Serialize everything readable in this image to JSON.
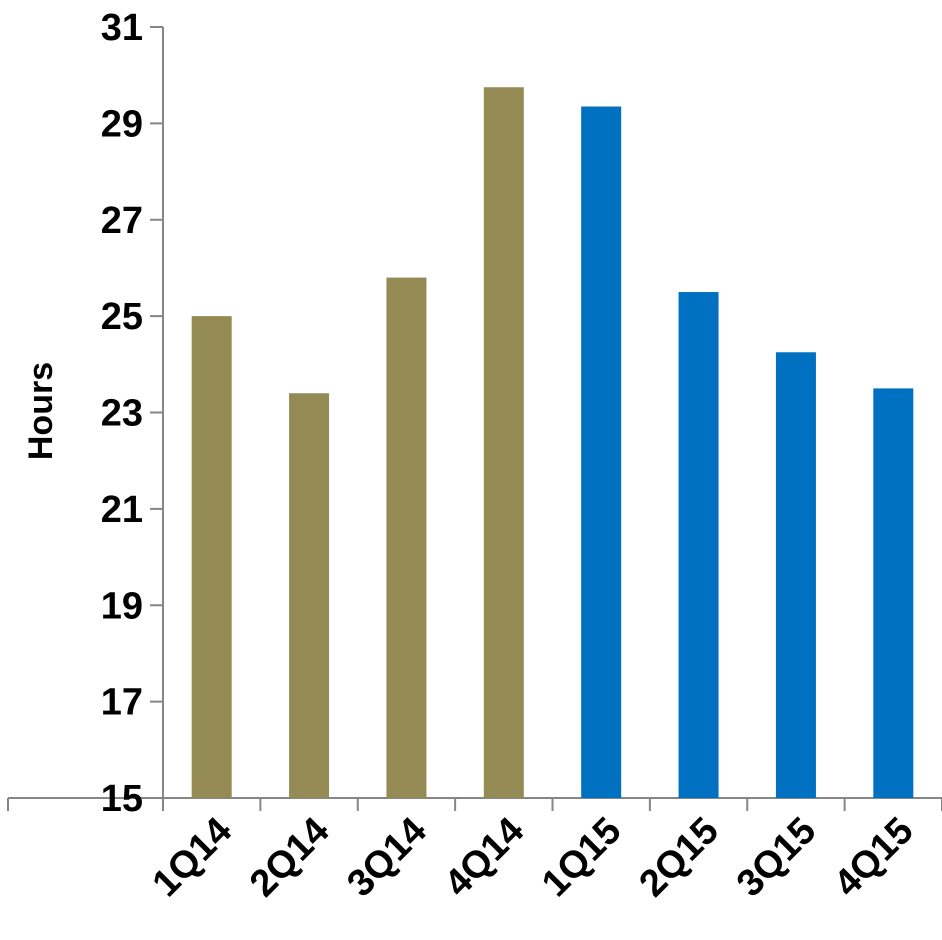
{
  "chart_data": {
    "type": "bar",
    "title": "",
    "xlabel": "",
    "ylabel": "Hours",
    "categories": [
      "1Q14",
      "2Q14",
      "3Q14",
      "4Q14",
      "1Q15",
      "2Q15",
      "3Q15",
      "4Q15"
    ],
    "values": [
      25.0,
      23.4,
      25.8,
      29.75,
      29.35,
      25.5,
      24.25,
      23.5
    ],
    "bar_colors": [
      "#948A54",
      "#948A54",
      "#948A54",
      "#948A54",
      "#0070C0",
      "#0070C0",
      "#0070C0",
      "#0070C0"
    ],
    "ylim": [
      15,
      31
    ],
    "yticks": [
      "15",
      "17",
      "19",
      "21",
      "23",
      "25",
      "27",
      "29",
      "31"
    ],
    "grid": false,
    "legend": "none"
  }
}
